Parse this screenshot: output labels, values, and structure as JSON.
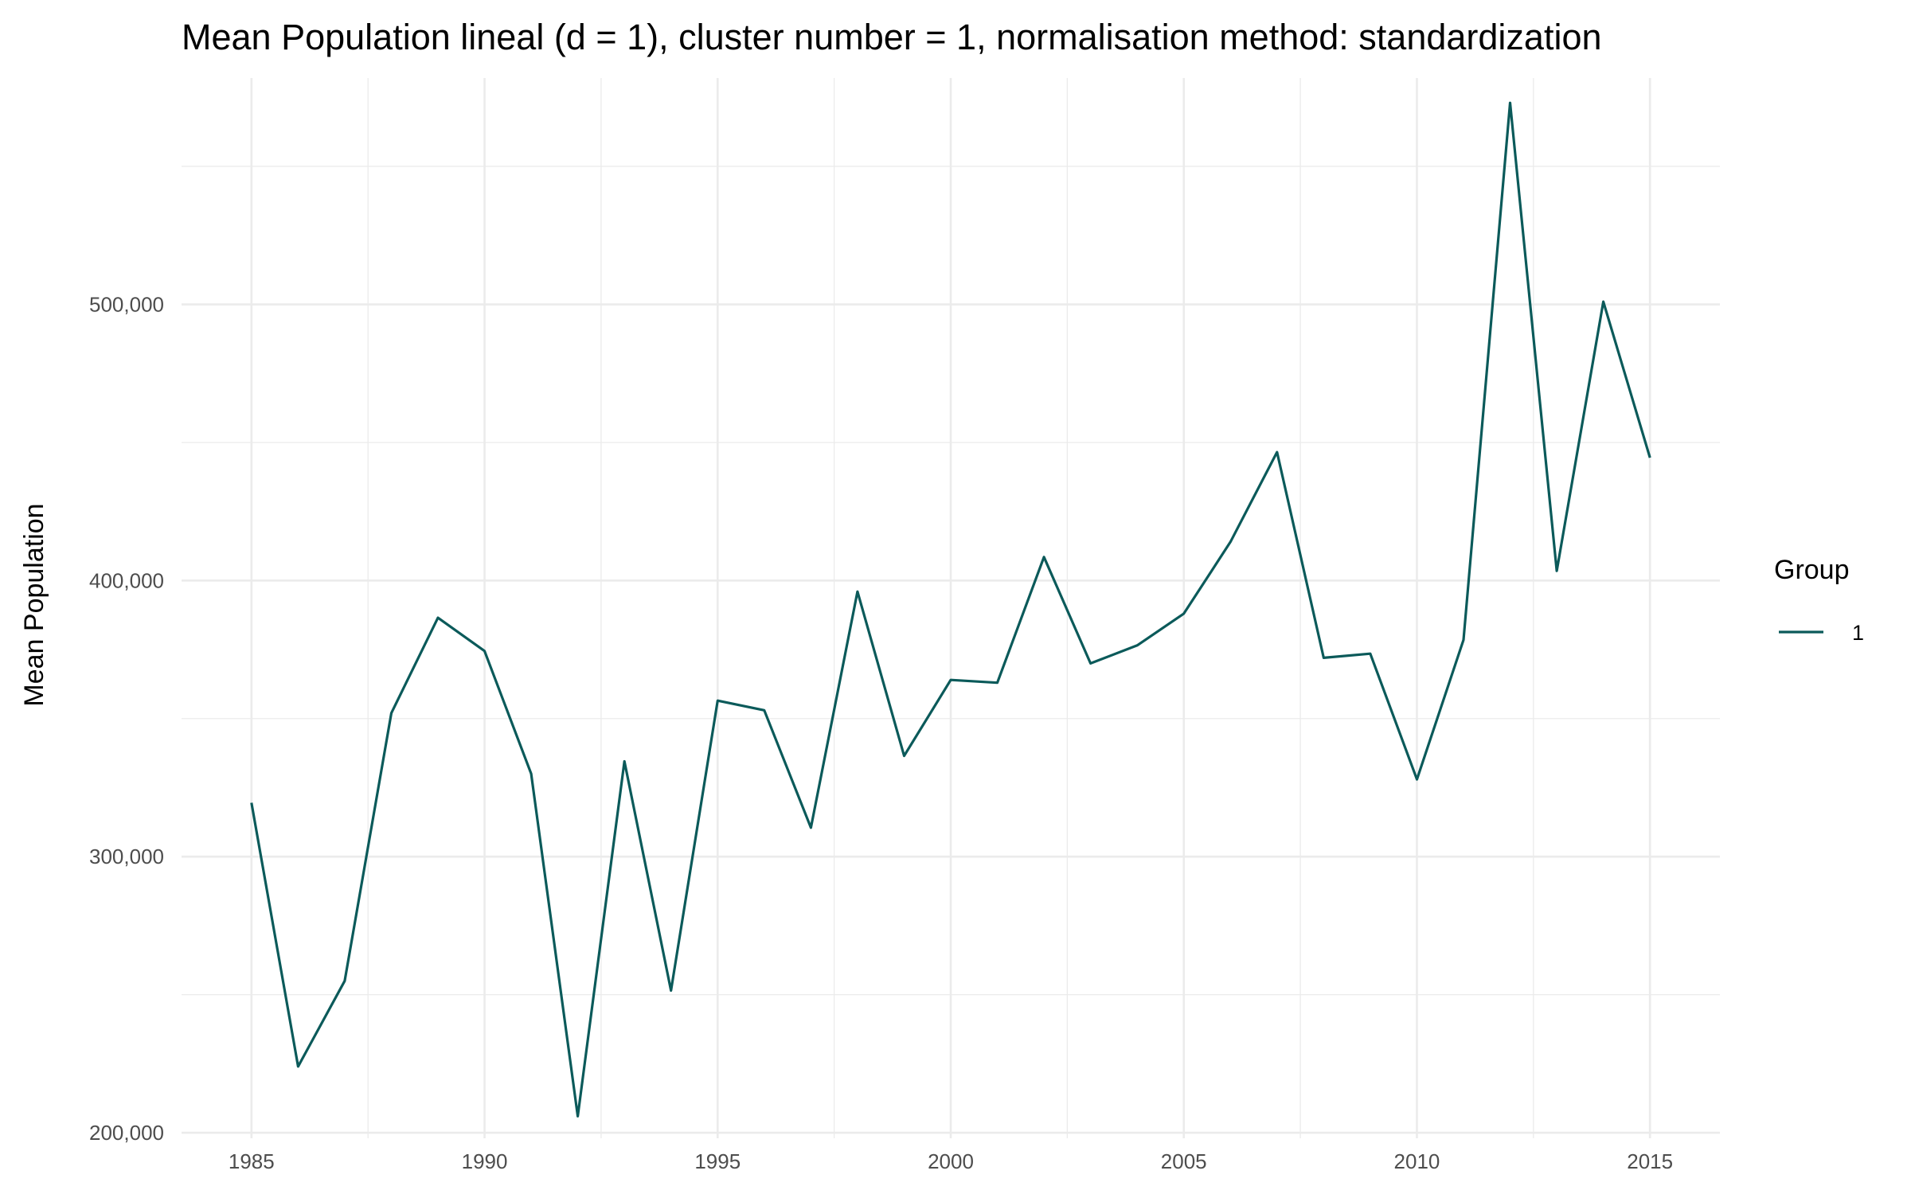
{
  "chart_data": {
    "type": "line",
    "title": "Mean Population lineal (d = 1), cluster number = 1, normalisation method: standardization",
    "xlabel": "",
    "ylabel": "Mean Population",
    "x": [
      1985,
      1986,
      1987,
      1988,
      1989,
      1990,
      1991,
      1992,
      1993,
      1994,
      1995,
      1996,
      1997,
      1998,
      1999,
      2000,
      2001,
      2002,
      2003,
      2004,
      2005,
      2006,
      2007,
      2008,
      2009,
      2010,
      2011,
      2012,
      2013,
      2014,
      2015
    ],
    "series": [
      {
        "name": "1",
        "color": "#0b5a5a",
        "values": [
          319500,
          224000,
          255000,
          352000,
          386500,
          374500,
          330000,
          206000,
          334500,
          251500,
          356500,
          353000,
          310500,
          396000,
          336500,
          364000,
          363000,
          408500,
          370000,
          376500,
          388000,
          414000,
          446500,
          372000,
          373500,
          328000,
          378500,
          573000,
          403500,
          501000,
          444500
        ]
      }
    ],
    "xlim": [
      1983.5,
      2016.5
    ],
    "ylim": [
      198000,
      582000
    ],
    "x_ticks": [
      1985,
      1990,
      1995,
      2000,
      2005,
      2010,
      2015
    ],
    "x_tick_labels": [
      "1985",
      "1990",
      "1995",
      "2000",
      "2005",
      "2010",
      "2015"
    ],
    "x_minor_ticks": [
      1987.5,
      1992.5,
      1997.5,
      2002.5,
      2007.5,
      2012.5
    ],
    "y_ticks": [
      200000,
      300000,
      400000,
      500000
    ],
    "y_tick_labels": [
      "200,000",
      "300,000",
      "400,000",
      "500,000"
    ],
    "y_minor_ticks": [
      250000,
      350000,
      450000,
      550000
    ],
    "grid": true,
    "legend": {
      "title": "Group",
      "placement": "right",
      "entries": [
        "1"
      ]
    }
  }
}
